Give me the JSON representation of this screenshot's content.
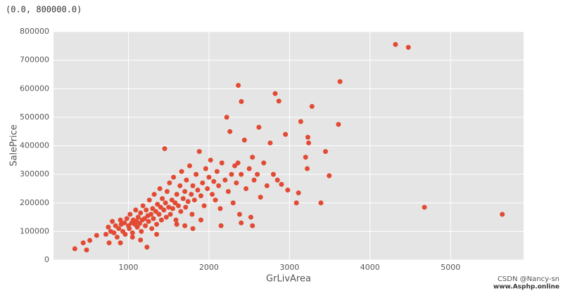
{
  "output_text": "(0.0, 800000.0)",
  "watermark": "CSDN @Nancy-sn",
  "watermark2": "www.Asphp.online",
  "chart_data": {
    "type": "scatter",
    "x_label": "GrLivArea",
    "y_label": "SalePrice",
    "color": "#E24A33",
    "grid": true,
    "xlim": [
      69,
      5907
    ],
    "ylim": [
      0,
      800000
    ],
    "xticks": [
      1000,
      2000,
      3000,
      4000,
      5000
    ],
    "yticks": [
      0,
      100000,
      200000,
      300000,
      400000,
      500000,
      600000,
      700000,
      800000
    ],
    "x": [
      334,
      438,
      480,
      520,
      605,
      4316,
      4476,
      4676,
      5642,
      3627,
      2364,
      2822,
      2868,
      2402,
      3279,
      3608,
      3140,
      3390,
      3447,
      3228,
      3238,
      3493,
      3086,
      3112,
      2978,
      3200,
      3220,
      720,
      750,
      760,
      780,
      800,
      820,
      840,
      860,
      880,
      900,
      910,
      930,
      950,
      960,
      980,
      1000,
      1010,
      1020,
      1040,
      1050,
      1060,
      1080,
      1090,
      1100,
      1110,
      1120,
      1140,
      1150,
      1160,
      1170,
      1180,
      1200,
      1210,
      1220,
      1240,
      1250,
      1260,
      1280,
      1290,
      1300,
      1310,
      1320,
      1340,
      1350,
      1360,
      1380,
      1390,
      1400,
      1410,
      1420,
      1440,
      1450,
      1460,
      1470,
      1480,
      1500,
      1510,
      1520,
      1540,
      1550,
      1560,
      1580,
      1590,
      1600,
      1620,
      1640,
      1650,
      1660,
      1680,
      1700,
      1710,
      1720,
      1740,
      1760,
      1780,
      1790,
      1800,
      1820,
      1840,
      1860,
      1880,
      1900,
      1920,
      1940,
      1960,
      1980,
      2000,
      2020,
      2040,
      2060,
      2080,
      2100,
      2120,
      2140,
      2160,
      2200,
      2220,
      2240,
      2260,
      2280,
      2300,
      2320,
      2340,
      2360,
      2380,
      2400,
      2440,
      2460,
      2500,
      2520,
      2540,
      2560,
      2600,
      2620,
      2640,
      2680,
      2720,
      2760,
      2800,
      2850,
      2900,
      2950,
      1230,
      1150,
      1600,
      1700,
      1900,
      2150,
      2400,
      1350,
      1050,
      900,
      2540,
      1800
    ],
    "values": [
      39300,
      60000,
      35000,
      68500,
      86000,
      755000,
      745000,
      184750,
      160000,
      625000,
      611657,
      582933,
      556581,
      555000,
      538000,
      475000,
      485000,
      200000,
      380000,
      430000,
      410000,
      295000,
      200000,
      235000,
      245000,
      360000,
      320000,
      90000,
      115000,
      60000,
      100000,
      135000,
      95000,
      120000,
      80000,
      110000,
      140000,
      125000,
      100000,
      130000,
      90000,
      145000,
      120000,
      110000,
      160000,
      130000,
      95000,
      140000,
      125000,
      175000,
      135000,
      115000,
      150000,
      128000,
      165000,
      100000,
      140000,
      190000,
      145000,
      120000,
      175000,
      155000,
      135000,
      210000,
      160000,
      110000,
      180000,
      145000,
      230000,
      170000,
      125000,
      195000,
      160000,
      250000,
      185000,
      140000,
      215000,
      175000,
      390000,
      200000,
      150000,
      240000,
      185000,
      270000,
      160000,
      210000,
      180000,
      290000,
      200000,
      140000,
      230000,
      190000,
      260000,
      170000,
      310000,
      215000,
      240000,
      185000,
      280000,
      205000,
      330000,
      230000,
      160000,
      260000,
      210000,
      300000,
      245000,
      380000,
      225000,
      270000,
      190000,
      320000,
      250000,
      290000,
      350000,
      230000,
      275000,
      210000,
      310000,
      260000,
      180000,
      340000,
      280000,
      500000,
      240000,
      450000,
      300000,
      200000,
      330000,
      270000,
      340000,
      160000,
      300000,
      420000,
      250000,
      320000,
      150000,
      360000,
      280000,
      300000,
      465000,
      220000,
      340000,
      260000,
      410000,
      300000,
      280000,
      265000,
      440000,
      45000,
      70000,
      125000,
      120000,
      140000,
      120000,
      130000,
      90000,
      80000,
      60000,
      120000,
      110000
    ]
  }
}
